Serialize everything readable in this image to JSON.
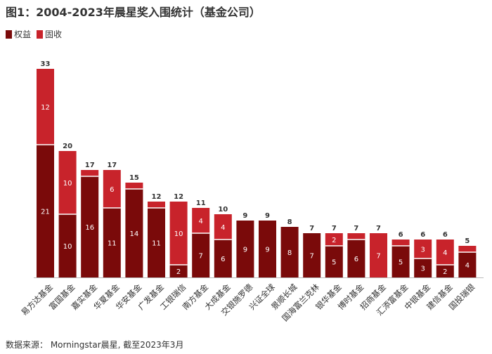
{
  "chart_data": {
    "type": "bar",
    "stacked": true,
    "title": "图1：2004-2023年晨星奖入围统计（基金公司）",
    "categories": [
      "易方达基金",
      "富国基金",
      "嘉实基金",
      "华夏基金",
      "华安基金",
      "广发基金",
      "工银瑞信",
      "南方基金",
      "大成基金",
      "交银施罗德",
      "兴证全球",
      "景顺长城",
      "国海富兰克林",
      "银华基金",
      "博时基金",
      "招商基金",
      "汇添富基金",
      "中银基金",
      "建信基金",
      "国投瑞银"
    ],
    "series": [
      {
        "name": "权益",
        "color": "#7a0a0a",
        "values": [
          21,
          10,
          16,
          11,
          14,
          11,
          2,
          7,
          6,
          9,
          9,
          8,
          7,
          5,
          6,
          0,
          5,
          3,
          2,
          4
        ]
      },
      {
        "name": "固收",
        "color": "#c8232b",
        "values": [
          12,
          10,
          1,
          6,
          1,
          1,
          10,
          4,
          4,
          0,
          0,
          0,
          0,
          2,
          1,
          7,
          1,
          3,
          4,
          1
        ]
      }
    ],
    "totals": [
      33,
      20,
      17,
      17,
      15,
      12,
      12,
      11,
      10,
      9,
      9,
      8,
      7,
      7,
      7,
      7,
      6,
      6,
      6,
      5
    ],
    "ylim": [
      0,
      33
    ],
    "grid": false,
    "legend_position": "top-left"
  },
  "source": "数据来源： Morningstar晨星, 截至2023年3月"
}
